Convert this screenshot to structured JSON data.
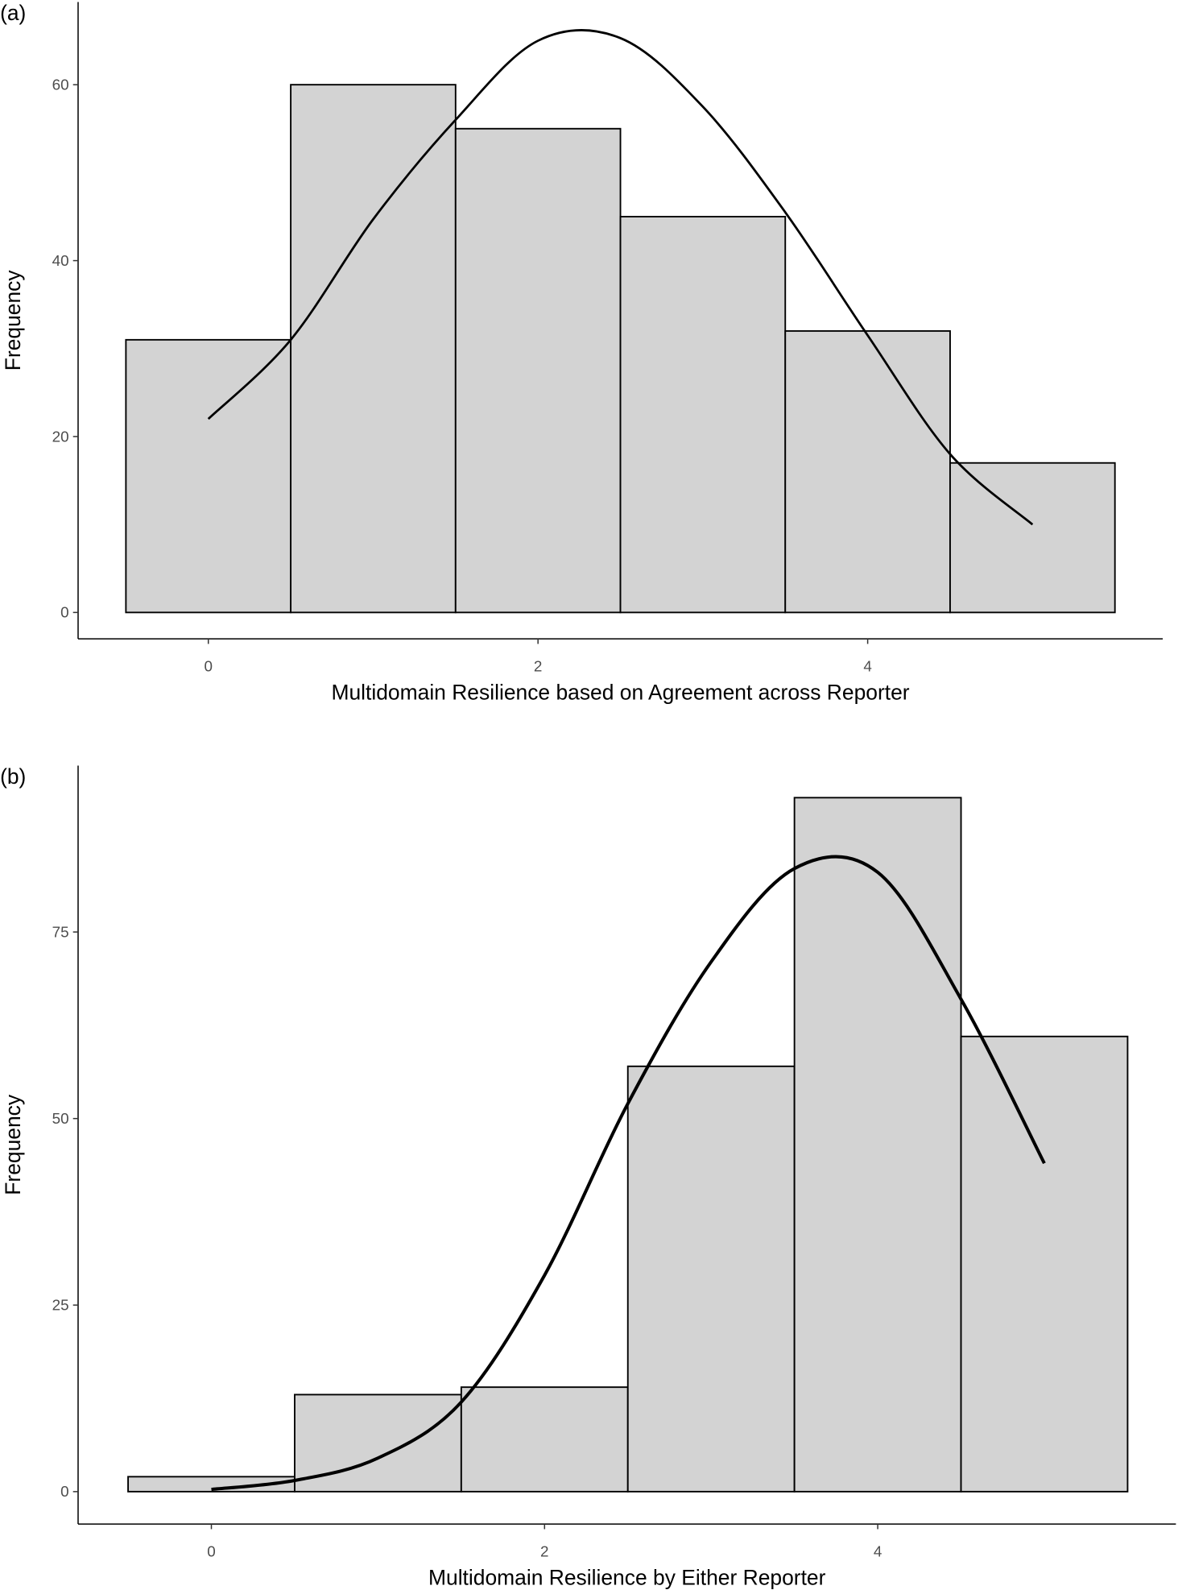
{
  "chart_data": [
    {
      "type": "histogram",
      "panel_label": "(a)",
      "x_label": "Multidomain Resilience based on Agreement across Reporter",
      "y_label": "Frequency",
      "bins": [
        -0.5,
        0.5,
        1.5,
        2.5,
        3.5,
        4.5,
        5.5
      ],
      "values": [
        31,
        60,
        55,
        45,
        32,
        17
      ],
      "color": "#d3d3d3",
      "line": {
        "x": [
          0,
          0.5,
          1,
          1.5,
          2,
          2.5,
          3,
          3.5,
          4,
          4.5,
          5
        ],
        "values": [
          22,
          31,
          44.7,
          56,
          65,
          65.3,
          57.5,
          45.5,
          31.5,
          18,
          10
        ],
        "color": "#000000"
      },
      "xlim": [
        -0.79,
        5.79
      ],
      "ylim": [
        -3,
        69.4
      ],
      "xticks": [
        0,
        2,
        4
      ],
      "yticks": [
        0,
        20,
        40,
        60
      ]
    },
    {
      "type": "histogram",
      "panel_label": "(b)",
      "x_label": "Multidomain Resilience by Either Reporter",
      "y_label": "Frequency",
      "bins": [
        -0.5,
        0.5,
        1.5,
        2.5,
        3.5,
        4.5,
        5.5
      ],
      "values": [
        2,
        13,
        14,
        57,
        93,
        61
      ],
      "color": "#d3d3d3",
      "line": {
        "x": [
          0,
          0.5,
          1,
          1.5,
          2,
          2.5,
          3,
          3.5,
          4,
          4.5,
          5
        ],
        "values": [
          0.3,
          1.5,
          4.5,
          12,
          29,
          52,
          71,
          83.5,
          83,
          66,
          44
        ],
        "color": "#000000"
      },
      "xlim": [
        -0.8,
        5.79
      ],
      "ylim": [
        -4.35,
        97.3
      ],
      "xticks": [
        0,
        2,
        4
      ],
      "yticks": [
        0,
        25,
        50,
        75
      ]
    }
  ]
}
